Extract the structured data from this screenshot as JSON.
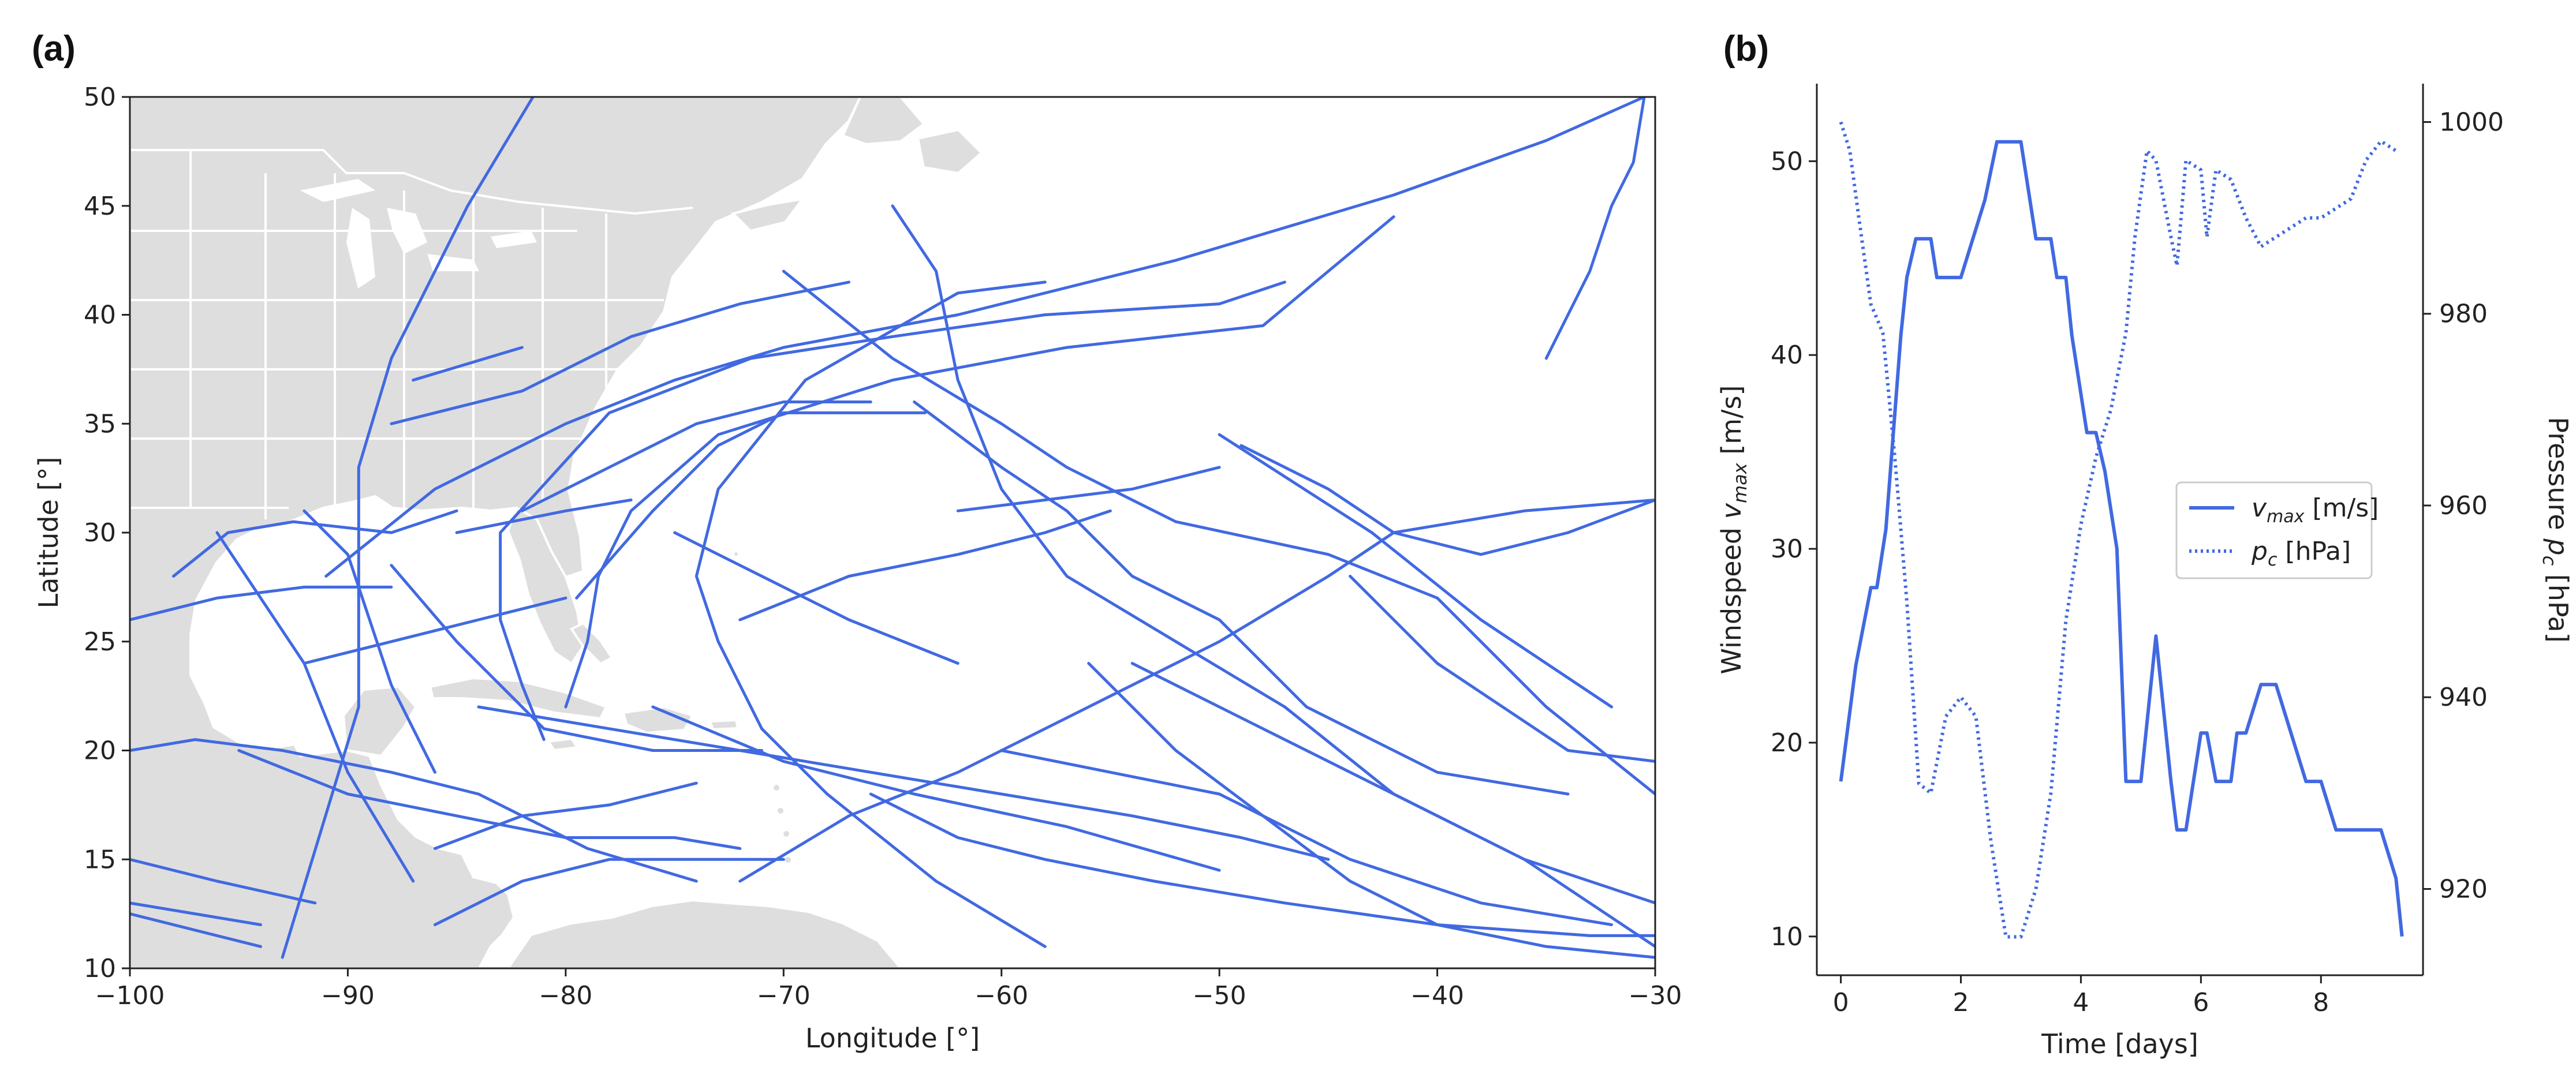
{
  "colors": {
    "track": "#4169E1",
    "land": "#dedede",
    "border": "#ffffff",
    "axis": "#222222"
  },
  "panels": {
    "a": "(a)",
    "b": "(b)"
  },
  "chart_data": [
    {
      "type": "line",
      "title": "",
      "xlabel": "Longitude [°]",
      "ylabel": "Latitude [°]",
      "xlim": [
        -100,
        -30
      ],
      "ylim": [
        10,
        50
      ],
      "xticks": [
        -100,
        -90,
        -80,
        -70,
        -60,
        -50,
        -40,
        -30
      ],
      "yticks": [
        10,
        15,
        20,
        25,
        30,
        35,
        40,
        45,
        50
      ],
      "xtick_labels": [
        "−100",
        "−90",
        "−80",
        "−70",
        "−60",
        "−50",
        "−40",
        "−30"
      ],
      "ytick_labels": [
        "10",
        "15",
        "20",
        "25",
        "30",
        "35",
        "40",
        "45",
        "50"
      ],
      "background": "land and sea basemap",
      "tracks": [
        [
          [
            -93,
            10.5
          ],
          [
            -89.5,
            22
          ],
          [
            -89.5,
            33
          ],
          [
            -88,
            38
          ],
          [
            -84.5,
            45
          ],
          [
            -81.5,
            50
          ]
        ],
        [
          [
            -100,
            26
          ],
          [
            -96,
            27
          ],
          [
            -92,
            27.5
          ],
          [
            -88,
            27.5
          ]
        ],
        [
          [
            -91,
            28
          ],
          [
            -86,
            32
          ],
          [
            -80,
            35
          ],
          [
            -75,
            37
          ],
          [
            -70,
            38.5
          ],
          [
            -62,
            40
          ],
          [
            -52,
            42.5
          ],
          [
            -42,
            45.5
          ],
          [
            -35,
            48
          ],
          [
            -30.5,
            50
          ]
        ],
        [
          [
            -98,
            28
          ],
          [
            -95.5,
            30
          ],
          [
            -92.5,
            30.5
          ],
          [
            -88,
            30
          ],
          [
            -85,
            31
          ]
        ],
        [
          [
            -80,
            22
          ],
          [
            -79,
            25
          ],
          [
            -78.5,
            28
          ],
          [
            -77,
            31
          ],
          [
            -73,
            34.5
          ],
          [
            -65,
            37
          ],
          [
            -57,
            38.5
          ],
          [
            -48,
            39.5
          ],
          [
            -42,
            44.5
          ]
        ],
        [
          [
            -81,
            20.5
          ],
          [
            -82,
            23
          ],
          [
            -83,
            26
          ],
          [
            -83,
            30
          ],
          [
            -78,
            35.5
          ],
          [
            -71.5,
            38
          ],
          [
            -65,
            39
          ],
          [
            -58,
            40
          ],
          [
            -50,
            40.5
          ],
          [
            -47,
            41.5
          ]
        ],
        [
          [
            -92,
            31
          ],
          [
            -90,
            29
          ],
          [
            -89,
            26
          ],
          [
            -88,
            23
          ],
          [
            -86,
            19
          ]
        ],
        [
          [
            -79.5,
            27
          ],
          [
            -76,
            31
          ],
          [
            -73,
            34
          ],
          [
            -70,
            35.5
          ],
          [
            -63.5,
            35.5
          ]
        ],
        [
          [
            -100,
            20
          ],
          [
            -97,
            20.5
          ],
          [
            -93,
            20
          ],
          [
            -88,
            19
          ],
          [
            -84,
            18
          ],
          [
            -79,
            15.5
          ],
          [
            -74,
            14
          ]
        ],
        [
          [
            -100,
            15
          ],
          [
            -96,
            14
          ],
          [
            -91.5,
            13
          ]
        ],
        [
          [
            -100,
            13
          ],
          [
            -97,
            12.5
          ],
          [
            -94,
            12
          ]
        ],
        [
          [
            -100,
            12.5
          ],
          [
            -94,
            11
          ]
        ],
        [
          [
            -58,
            11
          ],
          [
            -63,
            14
          ],
          [
            -68,
            18
          ],
          [
            -71,
            21
          ],
          [
            -73,
            25
          ],
          [
            -74,
            28
          ],
          [
            -73,
            32
          ],
          [
            -69,
            37
          ],
          [
            -62,
            41
          ],
          [
            -58,
            41.5
          ]
        ],
        [
          [
            -62,
            31
          ],
          [
            -58,
            31.5
          ],
          [
            -54,
            32
          ],
          [
            -50,
            33
          ]
        ],
        [
          [
            -70,
            42
          ],
          [
            -65,
            38
          ],
          [
            -60,
            35
          ],
          [
            -57,
            33
          ],
          [
            -52,
            30.5
          ],
          [
            -45,
            29
          ],
          [
            -40,
            27
          ],
          [
            -35,
            22
          ],
          [
            -30,
            18
          ]
        ],
        [
          [
            -50,
            34.5
          ],
          [
            -43,
            30
          ],
          [
            -38,
            26
          ],
          [
            -32,
            22
          ]
        ],
        [
          [
            -54,
            24
          ],
          [
            -48,
            21
          ],
          [
            -42,
            18
          ],
          [
            -36,
            15
          ],
          [
            -30,
            11
          ]
        ],
        [
          [
            -56,
            24
          ],
          [
            -52,
            20
          ],
          [
            -48,
            17
          ],
          [
            -44,
            14
          ],
          [
            -40,
            12
          ],
          [
            -35,
            11
          ],
          [
            -30,
            10.5
          ]
        ],
        [
          [
            -60,
            20
          ],
          [
            -55,
            19
          ],
          [
            -50,
            18
          ],
          [
            -44,
            15
          ],
          [
            -38,
            13
          ],
          [
            -32,
            12
          ]
        ],
        [
          [
            -66,
            18
          ],
          [
            -62,
            16
          ],
          [
            -58,
            15
          ],
          [
            -53,
            14
          ],
          [
            -47,
            13
          ],
          [
            -40,
            12
          ],
          [
            -33,
            11.5
          ],
          [
            -30,
            11.5
          ]
        ],
        [
          [
            -84,
            22
          ],
          [
            -78,
            21
          ],
          [
            -72,
            20
          ],
          [
            -66,
            19
          ],
          [
            -60,
            18
          ],
          [
            -54,
            17
          ],
          [
            -49,
            16
          ],
          [
            -45,
            15
          ]
        ],
        [
          [
            -76,
            22
          ],
          [
            -70,
            19.5
          ],
          [
            -64,
            18
          ],
          [
            -57,
            16.5
          ],
          [
            -50,
            14.5
          ]
        ],
        [
          [
            -65,
            45
          ],
          [
            -63,
            42
          ],
          [
            -62,
            37
          ],
          [
            -60,
            32
          ],
          [
            -57,
            28
          ],
          [
            -52,
            25
          ],
          [
            -47,
            22
          ],
          [
            -42,
            18
          ],
          [
            -36,
            15
          ],
          [
            -30,
            13
          ]
        ],
        [
          [
            -44,
            28
          ],
          [
            -40,
            24
          ],
          [
            -34,
            20
          ],
          [
            -30,
            19.5
          ]
        ],
        [
          [
            -95,
            20
          ],
          [
            -90,
            18
          ],
          [
            -85,
            17
          ],
          [
            -80,
            16
          ],
          [
            -75,
            16
          ],
          [
            -72,
            15.5
          ]
        ],
        [
          [
            -96,
            30
          ],
          [
            -92,
            24
          ],
          [
            -90,
            19
          ],
          [
            -87,
            14
          ]
        ],
        [
          [
            -88,
            28.5
          ],
          [
            -85,
            25
          ],
          [
            -81,
            21
          ],
          [
            -76,
            20
          ],
          [
            -71,
            20
          ]
        ],
        [
          [
            -49,
            34
          ],
          [
            -45,
            32
          ],
          [
            -42,
            30
          ],
          [
            -38,
            29
          ],
          [
            -34,
            30
          ],
          [
            -30,
            31.5
          ]
        ],
        [
          [
            -75,
            30
          ],
          [
            -71,
            28
          ],
          [
            -67,
            26
          ],
          [
            -62,
            24
          ]
        ],
        [
          [
            -86,
            15.5
          ],
          [
            -82,
            17
          ],
          [
            -78,
            17.5
          ],
          [
            -74,
            18.5
          ]
        ],
        [
          [
            -86,
            12
          ],
          [
            -82,
            14
          ],
          [
            -78,
            15
          ],
          [
            -74,
            15
          ],
          [
            -70,
            15
          ]
        ],
        [
          [
            -92,
            24
          ],
          [
            -88,
            25
          ],
          [
            -84,
            26
          ],
          [
            -80,
            27
          ]
        ],
        [
          [
            -82,
            31
          ],
          [
            -78,
            33
          ],
          [
            -74,
            35
          ],
          [
            -70,
            36
          ],
          [
            -66,
            36
          ]
        ],
        [
          [
            -64,
            36
          ],
          [
            -60,
            33
          ],
          [
            -57,
            31
          ],
          [
            -54,
            28
          ],
          [
            -50,
            26
          ],
          [
            -46,
            22
          ],
          [
            -40,
            19
          ],
          [
            -34,
            18
          ]
        ],
        [
          [
            -88,
            35
          ],
          [
            -82,
            36.5
          ],
          [
            -77,
            39
          ],
          [
            -72,
            40.5
          ],
          [
            -67,
            41.5
          ]
        ],
        [
          [
            -87,
            37
          ],
          [
            -82,
            38.5
          ]
        ],
        [
          [
            -85,
            30
          ],
          [
            -80,
            31
          ],
          [
            -77,
            31.5
          ]
        ],
        [
          [
            -72,
            14
          ],
          [
            -67,
            17
          ],
          [
            -62,
            19
          ],
          [
            -56,
            22
          ],
          [
            -50,
            25
          ],
          [
            -45,
            28
          ],
          [
            -42,
            30
          ],
          [
            -36,
            31
          ],
          [
            -30,
            31.5
          ]
        ],
        [
          [
            -72,
            26
          ],
          [
            -67,
            28
          ],
          [
            -62,
            29
          ],
          [
            -58,
            30
          ],
          [
            -55,
            31
          ]
        ],
        [
          [
            -35,
            38
          ],
          [
            -34,
            40
          ],
          [
            -33,
            42
          ],
          [
            -32,
            45
          ],
          [
            -31,
            47
          ],
          [
            -30.5,
            50
          ]
        ]
      ]
    },
    {
      "type": "line",
      "title": "",
      "xlabel": "Time [days]",
      "ylabel_left": "Windspeed v_max [m/s]",
      "ylabel_right": "Pressure p_c [hPa]",
      "xlim": [
        -0.4,
        9.7
      ],
      "ylim_left": [
        8,
        54
      ],
      "ylim_right": [
        911,
        1004
      ],
      "xticks": [
        0,
        2,
        4,
        6,
        8
      ],
      "yticks_left": [
        10,
        20,
        30,
        40,
        50
      ],
      "yticks_right": [
        920,
        940,
        960,
        980,
        1000
      ],
      "legend_position": "center-right",
      "series": [
        {
          "name": "v_max [m/s]",
          "axis": "left",
          "style": "solid",
          "x": [
            0,
            0.25,
            0.5,
            0.6,
            0.75,
            0.85,
            1.0,
            1.1,
            1.25,
            1.5,
            1.6,
            1.75,
            2.0,
            2.2,
            2.4,
            2.6,
            2.75,
            3.0,
            3.25,
            3.5,
            3.6,
            3.75,
            3.85,
            4.0,
            4.1,
            4.25,
            4.4,
            4.6,
            4.75,
            4.9,
            5.0,
            5.25,
            5.5,
            5.6,
            5.75,
            6.0,
            6.1,
            6.25,
            6.5,
            6.6,
            6.75,
            7.0,
            7.25,
            7.5,
            7.75,
            8.0,
            8.25,
            8.5,
            9.0,
            9.25,
            9.35
          ],
          "values": [
            18,
            24,
            28,
            28,
            31,
            35,
            41,
            44,
            46,
            46,
            44,
            44,
            44,
            46,
            48,
            51,
            51,
            51,
            46,
            46,
            44,
            44,
            41,
            38,
            36,
            36,
            34,
            30,
            18,
            18,
            18,
            25.5,
            18,
            15.5,
            15.5,
            20.5,
            20.5,
            18,
            18,
            20.5,
            20.5,
            23,
            23,
            20.5,
            18,
            18,
            15.5,
            15.5,
            15.5,
            13,
            10
          ]
        },
        {
          "name": "p_c [hPa]",
          "axis": "right",
          "style": "dotted",
          "x": [
            0,
            0.15,
            0.3,
            0.5,
            0.7,
            0.9,
            1.1,
            1.3,
            1.5,
            1.75,
            2.0,
            2.25,
            2.5,
            2.75,
            3.0,
            3.25,
            3.5,
            3.75,
            4.0,
            4.25,
            4.5,
            4.75,
            4.9,
            5.1,
            5.25,
            5.5,
            5.6,
            5.75,
            6.0,
            6.1,
            6.25,
            6.5,
            6.75,
            7.0,
            7.5,
            7.75,
            8.0,
            8.5,
            8.75,
            9.0,
            9.25
          ],
          "values": [
            1000,
            997,
            990,
            981,
            978,
            965,
            950,
            931,
            930,
            938,
            940,
            938,
            925,
            915,
            915,
            920,
            930,
            948,
            958,
            965,
            970,
            978,
            988,
            997,
            996,
            988,
            985,
            996,
            995,
            988,
            995,
            994,
            990,
            987,
            989,
            990,
            990,
            992,
            996,
            998,
            997
          ]
        }
      ]
    }
  ]
}
